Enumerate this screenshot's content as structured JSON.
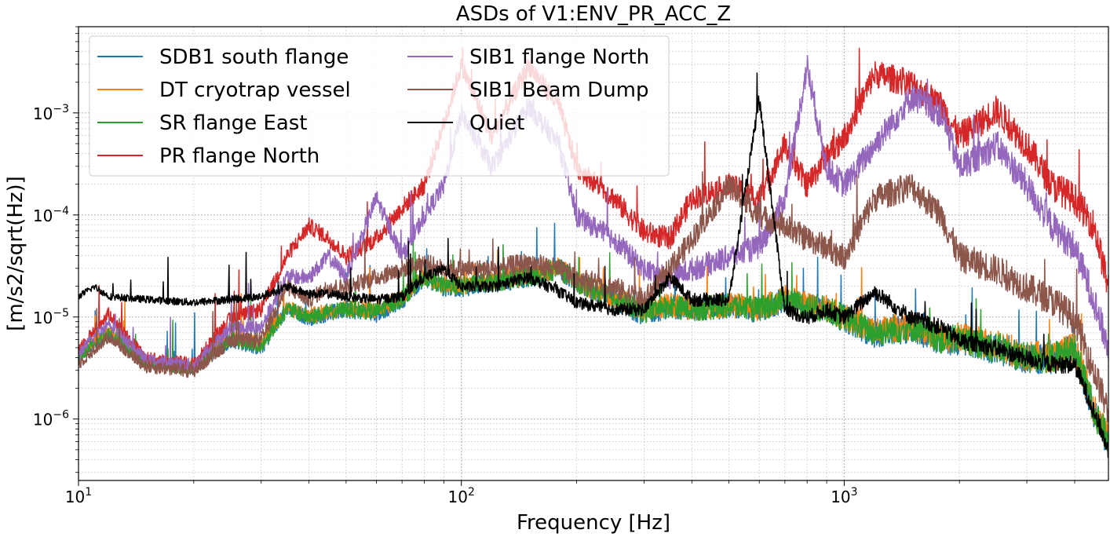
{
  "chart_data": {
    "type": "line",
    "title": "ASDs of V1:ENV_PR_ACC_Z",
    "xlabel": "Frequency [Hz]",
    "ylabel": "[m/s2/sqrt(Hz)]",
    "xscale": "log",
    "yscale": "log",
    "xlim": [
      10,
      4900
    ],
    "ylim": [
      2.5e-07,
      0.007
    ],
    "x_ticks": [
      {
        "value": 10,
        "label_base": "10",
        "label_exp": "1"
      },
      {
        "value": 100,
        "label_base": "10",
        "label_exp": "2"
      },
      {
        "value": 1000,
        "label_base": "10",
        "label_exp": "3"
      }
    ],
    "y_ticks": [
      {
        "value": 1e-06,
        "label_base": "10",
        "label_exp": "−6"
      },
      {
        "value": 1e-05,
        "label_base": "10",
        "label_exp": "−5"
      },
      {
        "value": 0.0001,
        "label_base": "10",
        "label_exp": "−4"
      },
      {
        "value": 0.001,
        "label_base": "10",
        "label_exp": "−3"
      }
    ],
    "grid": true,
    "legend_position": "top-left",
    "legend_columns": 2,
    "series": [
      {
        "name": "SDB1 south flange",
        "color": "#1f77b4",
        "x": [
          10,
          12,
          15,
          20,
          25,
          30,
          35,
          40,
          45,
          50,
          60,
          70,
          80,
          90,
          100,
          120,
          150,
          180,
          200,
          250,
          300,
          350,
          400,
          500,
          600,
          700,
          800,
          900,
          1000,
          1200,
          1500,
          1800,
          2000,
          2500,
          3000,
          3500,
          4000,
          4500,
          4900
        ],
        "y": [
          4e-06,
          7e-06,
          3.6e-06,
          3.2e-06,
          6e-06,
          5e-06,
          1.2e-05,
          1e-05,
          1.1e-05,
          1.2e-05,
          1.1e-05,
          1.5e-05,
          2.5e-05,
          2e-05,
          2e-05,
          2.2e-05,
          2.5e-05,
          3e-05,
          2.2e-05,
          1.5e-05,
          1.1e-05,
          1.3e-05,
          1.2e-05,
          1.3e-05,
          1.2e-05,
          1.5e-05,
          1.3e-05,
          1.2e-05,
          1e-05,
          7e-06,
          8e-06,
          6e-06,
          6e-06,
          5e-06,
          4e-06,
          4e-06,
          5e-06,
          1.2e-06,
          6e-07
        ]
      },
      {
        "name": "DT cryotrap vessel",
        "color": "#ff7f0e",
        "x": [
          10,
          12,
          15,
          20,
          25,
          30,
          35,
          40,
          45,
          50,
          60,
          70,
          80,
          90,
          100,
          120,
          150,
          180,
          200,
          250,
          300,
          350,
          400,
          500,
          600,
          700,
          800,
          900,
          1000,
          1200,
          1500,
          1800,
          2000,
          2500,
          3000,
          3500,
          4000,
          4500,
          4900
        ],
        "y": [
          4.2e-06,
          7.5e-06,
          3.7e-06,
          3.3e-06,
          6.5e-06,
          5.5e-06,
          1.25e-05,
          1.05e-05,
          1.15e-05,
          1.25e-05,
          1.2e-05,
          1.6e-05,
          2.6e-05,
          2.1e-05,
          2.1e-05,
          2.3e-05,
          2.6e-05,
          3.1e-05,
          2.3e-05,
          1.6e-05,
          1.2e-05,
          1.35e-05,
          1.25e-05,
          1.35e-05,
          1.25e-05,
          1.6e-05,
          1.35e-05,
          1.25e-05,
          1.05e-05,
          7.5e-06,
          8.5e-06,
          6.5e-06,
          6.5e-06,
          5.5e-06,
          4.3e-06,
          4.2e-06,
          5.2e-06,
          1.3e-06,
          6.5e-07
        ]
      },
      {
        "name": "SR flange East",
        "color": "#2ca02c",
        "x": [
          10,
          12,
          15,
          20,
          25,
          30,
          35,
          40,
          45,
          50,
          60,
          70,
          80,
          90,
          100,
          120,
          150,
          180,
          200,
          250,
          300,
          350,
          400,
          500,
          600,
          700,
          800,
          900,
          1000,
          1200,
          1500,
          1800,
          2000,
          2500,
          3000,
          3500,
          4000,
          4500,
          4900
        ],
        "y": [
          4.1e-06,
          7.2e-06,
          3.6e-06,
          3.2e-06,
          6.2e-06,
          5.2e-06,
          1.22e-05,
          1.02e-05,
          1.12e-05,
          1.22e-05,
          1.15e-05,
          1.55e-05,
          2.55e-05,
          2.05e-05,
          2.05e-05,
          2.25e-05,
          2.55e-05,
          3.05e-05,
          2.25e-05,
          1.55e-05,
          1.15e-05,
          1.32e-05,
          1.22e-05,
          1.32e-05,
          1.22e-05,
          1.55e-05,
          1.32e-05,
          1.22e-05,
          1.02e-05,
          7.2e-06,
          8.2e-06,
          6.2e-06,
          6.2e-06,
          5.2e-06,
          4.1e-06,
          4.1e-06,
          5.1e-06,
          1.25e-06,
          6.2e-07
        ]
      },
      {
        "name": "PR flange North",
        "color": "#d62728",
        "x": [
          10,
          12,
          15,
          20,
          25,
          30,
          35,
          40,
          45,
          50,
          60,
          70,
          80,
          90,
          100,
          120,
          150,
          180,
          200,
          250,
          300,
          350,
          400,
          500,
          600,
          700,
          800,
          900,
          1000,
          1200,
          1500,
          1800,
          2000,
          2500,
          3000,
          3500,
          4000,
          4500,
          4900
        ],
        "y": [
          5e-06,
          1.1e-05,
          4e-06,
          3.5e-06,
          1e-05,
          1.2e-05,
          4e-05,
          8e-05,
          6e-05,
          4e-05,
          6e-05,
          0.00012,
          0.0002,
          0.0008,
          0.003,
          0.0006,
          0.003,
          0.0012,
          0.0003,
          0.00015,
          7e-05,
          6e-05,
          0.00015,
          0.0002,
          0.00015,
          0.0005,
          0.0002,
          0.0004,
          0.0006,
          0.0025,
          0.002,
          0.0012,
          0.0006,
          0.0011,
          0.0005,
          0.0002,
          0.00015,
          8e-05,
          2e-05
        ]
      },
      {
        "name": "SIB1 flange North",
        "color": "#9467bd",
        "x": [
          10,
          12,
          15,
          20,
          25,
          30,
          35,
          40,
          45,
          50,
          60,
          70,
          80,
          90,
          100,
          120,
          150,
          180,
          200,
          250,
          300,
          350,
          400,
          500,
          600,
          700,
          800,
          900,
          1000,
          1200,
          1500,
          1800,
          2000,
          2500,
          3000,
          3500,
          4000,
          4500,
          4900
        ],
        "y": [
          4.5e-06,
          9e-06,
          3.8e-06,
          3.4e-06,
          8e-06,
          8e-06,
          2.5e-05,
          2.5e-05,
          4e-05,
          2.5e-05,
          0.00015,
          4e-05,
          0.0001,
          0.0002,
          0.001,
          0.0003,
          0.0012,
          0.0005,
          0.0001,
          6e-05,
          3e-05,
          2.5e-05,
          3e-05,
          4e-05,
          5e-05,
          0.00015,
          0.003,
          0.0003,
          0.0002,
          0.0005,
          0.0015,
          0.001,
          0.0003,
          0.0005,
          0.0002,
          8e-05,
          5e-05,
          1.5e-05,
          5e-06
        ]
      },
      {
        "name": "SIB1 Beam Dump",
        "color": "#8c564b",
        "x": [
          10,
          12,
          15,
          20,
          25,
          30,
          35,
          40,
          45,
          50,
          60,
          70,
          80,
          90,
          100,
          120,
          150,
          180,
          200,
          250,
          300,
          350,
          400,
          500,
          600,
          700,
          800,
          900,
          1000,
          1200,
          1500,
          1800,
          2000,
          2500,
          3000,
          3500,
          4000,
          4500,
          4900
        ],
        "y": [
          3.5e-06,
          6.5e-06,
          3.3e-06,
          3e-06,
          6e-06,
          6e-06,
          2e-05,
          1.5e-05,
          2e-05,
          2e-05,
          2.5e-05,
          3e-05,
          3.5e-05,
          3e-05,
          3e-05,
          3e-05,
          3.5e-05,
          3e-05,
          2.5e-05,
          2e-05,
          1.5e-05,
          3e-05,
          6e-05,
          0.0002,
          0.0001,
          8e-05,
          6e-05,
          5e-05,
          4e-05,
          0.00015,
          0.0002,
          0.0001,
          4e-05,
          3e-05,
          2e-05,
          1.5e-05,
          1e-05,
          3e-06,
          1.2e-06
        ]
      },
      {
        "name": "Quiet",
        "color": "#000000",
        "x": [
          10,
          11,
          12,
          15,
          20,
          25,
          30,
          35,
          40,
          45,
          50,
          60,
          70,
          80,
          90,
          100,
          120,
          150,
          180,
          200,
          250,
          300,
          350,
          400,
          500,
          600,
          700,
          800,
          900,
          1000,
          1200,
          1500,
          1800,
          2000,
          2500,
          3000,
          3500,
          4000,
          4500,
          4900
        ],
        "y": [
          1.6e-05,
          2e-05,
          1.6e-05,
          1.5e-05,
          1.4e-05,
          1.5e-05,
          1.6e-05,
          2e-05,
          1.7e-05,
          1.7e-05,
          1.6e-05,
          1.5e-05,
          1.6e-05,
          2.5e-05,
          3e-05,
          2e-05,
          2e-05,
          2.5e-05,
          1.8e-05,
          1.4e-05,
          1.2e-05,
          1.2e-05,
          2.5e-05,
          1.5e-05,
          1.5e-05,
          0.0014,
          1.2e-05,
          1e-05,
          1.2e-05,
          1e-05,
          1.8e-05,
          1e-05,
          8e-06,
          6e-06,
          5e-06,
          4e-06,
          3.5e-06,
          3.5e-06,
          1.2e-06,
          5e-07
        ]
      }
    ]
  }
}
